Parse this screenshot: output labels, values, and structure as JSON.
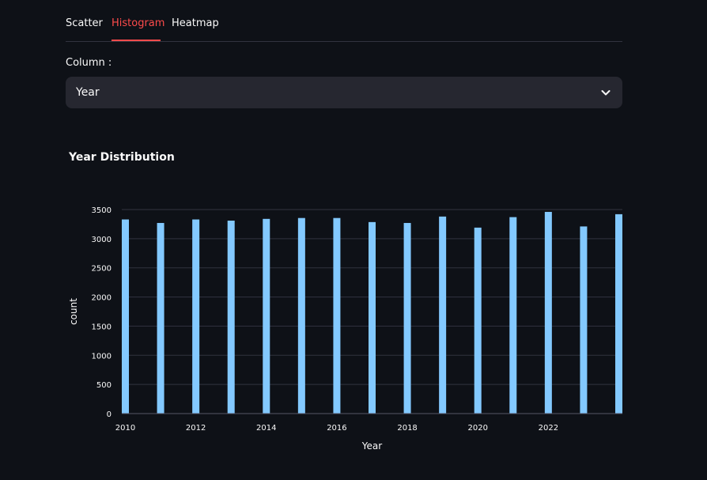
{
  "tabs": [
    {
      "label": "Scatter",
      "active": false
    },
    {
      "label": "Histogram",
      "active": true
    },
    {
      "label": "Heatmap",
      "active": false
    }
  ],
  "column_select": {
    "label": "Column :",
    "value": "Year",
    "icon": "chevron-down-icon"
  },
  "colors": {
    "background": "#0e1117",
    "accent": "#ff4b4b",
    "bar": "#83c9ff",
    "select_bg": "#262730",
    "grid": "#31333f"
  },
  "chart_data": {
    "type": "bar",
    "title": "Year Distribution",
    "xlabel": "Year",
    "ylabel": "count",
    "x": [
      2010,
      2011,
      2012,
      2013,
      2014,
      2015,
      2016,
      2017,
      2018,
      2019,
      2020,
      2021,
      2022,
      2023,
      2024
    ],
    "values": [
      3330,
      3270,
      3330,
      3310,
      3340,
      3355,
      3355,
      3285,
      3270,
      3380,
      3190,
      3370,
      3460,
      3210,
      3420
    ],
    "xlim": [
      2010,
      2024
    ],
    "ylim": [
      0,
      3500
    ],
    "x_ticks": [
      "2010",
      "2012",
      "2014",
      "2016",
      "2018",
      "2020",
      "2022"
    ],
    "y_ticks": [
      "0",
      "500",
      "1000",
      "1500",
      "2000",
      "2500",
      "3000",
      "3500"
    ],
    "grid": true
  }
}
